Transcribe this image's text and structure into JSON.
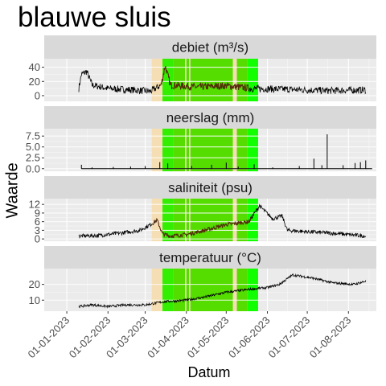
{
  "chart_data": {
    "type": "line",
    "title": "blauwe sluis",
    "xlabel": "Datum",
    "ylabel": "Waarde",
    "xlim": [
      "2022-12-15",
      "2023-08-22"
    ],
    "x_ticks": [
      "01-01-2023",
      "01-02-2023",
      "01-03-2023",
      "01-04-2023",
      "01-05-2023",
      "01-06-2023",
      "01-07-2023",
      "01-08-2023"
    ],
    "grid": true,
    "shaded_periods": [
      {
        "start": "2023-03-06",
        "end": "2023-03-14",
        "color": "#f5deb3"
      },
      {
        "start": "2023-03-14",
        "end": "2023-03-22",
        "color": "#33ee00"
      },
      {
        "start": "2023-03-22",
        "end": "2023-03-31",
        "color": "#55dd00"
      },
      {
        "start": "2023-03-31",
        "end": "2023-04-01",
        "color": "#f5deb3"
      },
      {
        "start": "2023-04-01",
        "end": "2023-04-03",
        "color": "#55dd00"
      },
      {
        "start": "2023-04-03",
        "end": "2023-04-04",
        "color": "#f5deb3"
      },
      {
        "start": "2023-04-04",
        "end": "2023-05-06",
        "color": "#55dd00"
      },
      {
        "start": "2023-05-06",
        "end": "2023-05-09",
        "color": "#f5deb3"
      },
      {
        "start": "2023-05-09",
        "end": "2023-05-17",
        "color": "#55dd00"
      },
      {
        "start": "2023-05-17",
        "end": "2023-05-25",
        "color": "#11ff00"
      }
    ],
    "panels": [
      {
        "name": "debiet (m³/s)",
        "ylim": [
          -8,
          52
        ],
        "yticks": [
          0,
          20,
          40
        ],
        "series": {
          "color": "#000000",
          "highlight_color": "#5a2a0a",
          "highlight_start": "2023-03-12",
          "highlight_end": "2023-05-18",
          "noise": 5,
          "points": [
            [
              "2023-01-10",
              10
            ],
            [
              "2023-01-12",
              30
            ],
            [
              "2023-01-16",
              34
            ],
            [
              "2023-01-20",
              15
            ],
            [
              "2023-02-01",
              10
            ],
            [
              "2023-02-20",
              8
            ],
            [
              "2023-03-05",
              6
            ],
            [
              "2023-03-13",
              15
            ],
            [
              "2023-03-16",
              42
            ],
            [
              "2023-03-20",
              15
            ],
            [
              "2023-04-10",
              12
            ],
            [
              "2023-05-01",
              14
            ],
            [
              "2023-05-20",
              10
            ],
            [
              "2023-06-15",
              9
            ],
            [
              "2023-07-15",
              7
            ],
            [
              "2023-08-14",
              8
            ]
          ]
        }
      },
      {
        "name": "neerslag (mm)",
        "ylim": [
          -0.6,
          9.2
        ],
        "yticks": [
          0.0,
          2.5,
          5.0,
          7.5
        ],
        "series": {
          "color": "#000000",
          "type": "spikes",
          "points": [
            [
              "2023-01-12",
              0.9
            ],
            [
              "2023-01-20",
              0.3
            ],
            [
              "2023-02-05",
              0.4
            ],
            [
              "2023-02-18",
              0.5
            ],
            [
              "2023-03-01",
              0.6
            ],
            [
              "2023-03-12",
              1.5
            ],
            [
              "2023-03-18",
              1.2
            ],
            [
              "2023-04-05",
              0.6
            ],
            [
              "2023-04-20",
              0.9
            ],
            [
              "2023-05-01",
              1.4
            ],
            [
              "2023-05-10",
              0.5
            ],
            [
              "2023-05-22",
              1.0
            ],
            [
              "2023-06-05",
              0.3
            ],
            [
              "2023-06-25",
              0.6
            ],
            [
              "2023-07-06",
              2.3
            ],
            [
              "2023-07-12",
              0.8
            ],
            [
              "2023-07-16",
              7.9
            ],
            [
              "2023-07-28",
              0.8
            ],
            [
              "2023-08-06",
              1.3
            ],
            [
              "2023-08-10",
              1.5
            ],
            [
              "2023-08-14",
              1.9
            ]
          ]
        }
      },
      {
        "name": "saliniteit (psu)",
        "ylim": [
          -0.8,
          14
        ],
        "yticks": [
          0,
          3,
          6,
          9,
          12
        ],
        "series": {
          "color": "#000000",
          "highlight_color": "#5a2a0a",
          "highlight_start": "2023-03-08",
          "highlight_end": "2023-05-20",
          "noise": 0.7,
          "points": [
            [
              "2023-01-10",
              1
            ],
            [
              "2023-01-25",
              1.2
            ],
            [
              "2023-02-10",
              2
            ],
            [
              "2023-02-25",
              3
            ],
            [
              "2023-03-05",
              5
            ],
            [
              "2023-03-10",
              6.5
            ],
            [
              "2023-03-14",
              1.8
            ],
            [
              "2023-03-20",
              1
            ],
            [
              "2023-04-01",
              1.5
            ],
            [
              "2023-04-15",
              3
            ],
            [
              "2023-05-01",
              5
            ],
            [
              "2023-05-10",
              5.5
            ],
            [
              "2023-05-18",
              6
            ],
            [
              "2023-05-26",
              11.5
            ],
            [
              "2023-06-05",
              7
            ],
            [
              "2023-06-12",
              8
            ],
            [
              "2023-06-16",
              3
            ],
            [
              "2023-07-01",
              2.5
            ],
            [
              "2023-07-20",
              2
            ],
            [
              "2023-08-14",
              1
            ]
          ]
        }
      },
      {
        "name": "temperatuur (°C)",
        "ylim": [
          3,
          30
        ],
        "yticks": [
          10,
          20
        ],
        "series": {
          "color": "#000000",
          "noise": 0.8,
          "points": [
            [
              "2023-01-10",
              6
            ],
            [
              "2023-01-20",
              7
            ],
            [
              "2023-02-01",
              6
            ],
            [
              "2023-02-15",
              7
            ],
            [
              "2023-03-01",
              7
            ],
            [
              "2023-03-15",
              9
            ],
            [
              "2023-04-01",
              10
            ],
            [
              "2023-04-15",
              12
            ],
            [
              "2023-05-01",
              15
            ],
            [
              "2023-05-20",
              17
            ],
            [
              "2023-06-01",
              18
            ],
            [
              "2023-06-10",
              20
            ],
            [
              "2023-06-20",
              26
            ],
            [
              "2023-07-05",
              24
            ],
            [
              "2023-07-20",
              21
            ],
            [
              "2023-08-05",
              20
            ],
            [
              "2023-08-14",
              22
            ]
          ]
        }
      }
    ]
  }
}
